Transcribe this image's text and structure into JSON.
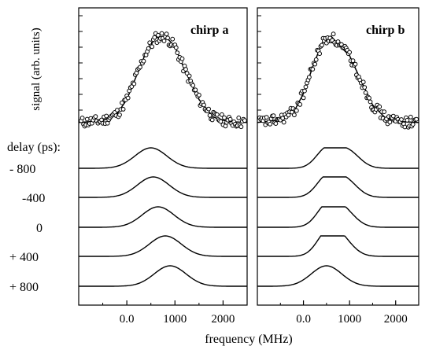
{
  "figure": {
    "ylabel": "signal (arb. units)",
    "xlabel": "frequency (MHz)",
    "delay_header": "delay (ps):"
  },
  "chart_data": [
    {
      "type": "line",
      "panel": "chirp a",
      "title": "chirp a",
      "xlabel": "frequency (MHz)",
      "ylabel": "signal (arb. units)",
      "xlim": [
        -1000,
        2500
      ],
      "x_ticks": [
        "0.0",
        "1000",
        "2000"
      ],
      "x_tick_values": [
        0,
        1000,
        2000
      ],
      "grid": false,
      "measured_top": {
        "markers": "open circles with solid fit curve",
        "fit": {
          "x": [
            -1000,
            -500,
            -200,
            0,
            200,
            400,
            600,
            800,
            1000,
            1200,
            1500,
            1800,
            2100,
            2500
          ],
          "y": [
            0.02,
            0.04,
            0.12,
            0.28,
            0.55,
            0.82,
            0.98,
            1.0,
            0.88,
            0.62,
            0.28,
            0.08,
            0.03,
            0.02
          ]
        }
      },
      "delays": {
        "labels": [
          "- 800",
          "-400",
          "0",
          "+ 400",
          "+ 800"
        ],
        "values_ps": [
          -800,
          -400,
          0,
          400,
          800
        ],
        "peak_MHz": [
          500,
          550,
          650,
          800,
          900
        ]
      }
    },
    {
      "type": "line",
      "panel": "chirp b",
      "title": "chirp b",
      "xlabel": "frequency (MHz)",
      "ylabel": "signal (arb. units)",
      "xlim": [
        -1000,
        2500
      ],
      "x_ticks": [
        "0.0",
        "1000",
        "2000"
      ],
      "x_tick_values": [
        0,
        1000,
        2000
      ],
      "grid": false,
      "measured_top": {
        "markers": "open circles with solid fit curve",
        "fit": {
          "x": [
            -1000,
            -500,
            -200,
            0,
            200,
            400,
            600,
            800,
            1000,
            1200,
            1500,
            1800,
            2100,
            2500
          ],
          "y": [
            0.02,
            0.05,
            0.15,
            0.35,
            0.65,
            0.92,
            1.0,
            0.88,
            0.78,
            0.55,
            0.22,
            0.06,
            0.03,
            0.02
          ]
        }
      },
      "delays": {
        "labels": [
          "- 800",
          "-400",
          "0",
          "+ 400",
          "+ 800"
        ],
        "values_ps": [
          -800,
          -400,
          0,
          400,
          800
        ],
        "peak_MHz": [
          [
            500,
            950
          ],
          [
            500,
            900
          ],
          [
            500,
            850
          ],
          [
            500,
            800
          ],
          [
            500
          ]
        ]
      }
    }
  ]
}
